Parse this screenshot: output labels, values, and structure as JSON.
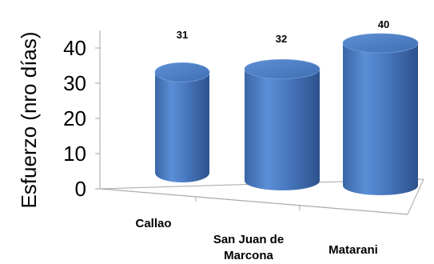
{
  "chart_data": {
    "type": "bar",
    "style": "3d-cylinder",
    "categories": [
      "Callao",
      "San Juan de Marcona",
      "Matarani"
    ],
    "category_lines": [
      [
        "Callao"
      ],
      [
        "San Juan de",
        "Marcona"
      ],
      [
        "Matarani"
      ]
    ],
    "values": [
      31,
      32,
      40
    ],
    "data_labels": [
      "31",
      "32",
      "40"
    ],
    "ylabel": "Esfuerzo (nro días)",
    "yticks": [
      0,
      10,
      20,
      30,
      40
    ],
    "ylim": [
      0,
      45
    ],
    "grid": false,
    "legend": "none",
    "bar_color": "#4f81bd"
  }
}
